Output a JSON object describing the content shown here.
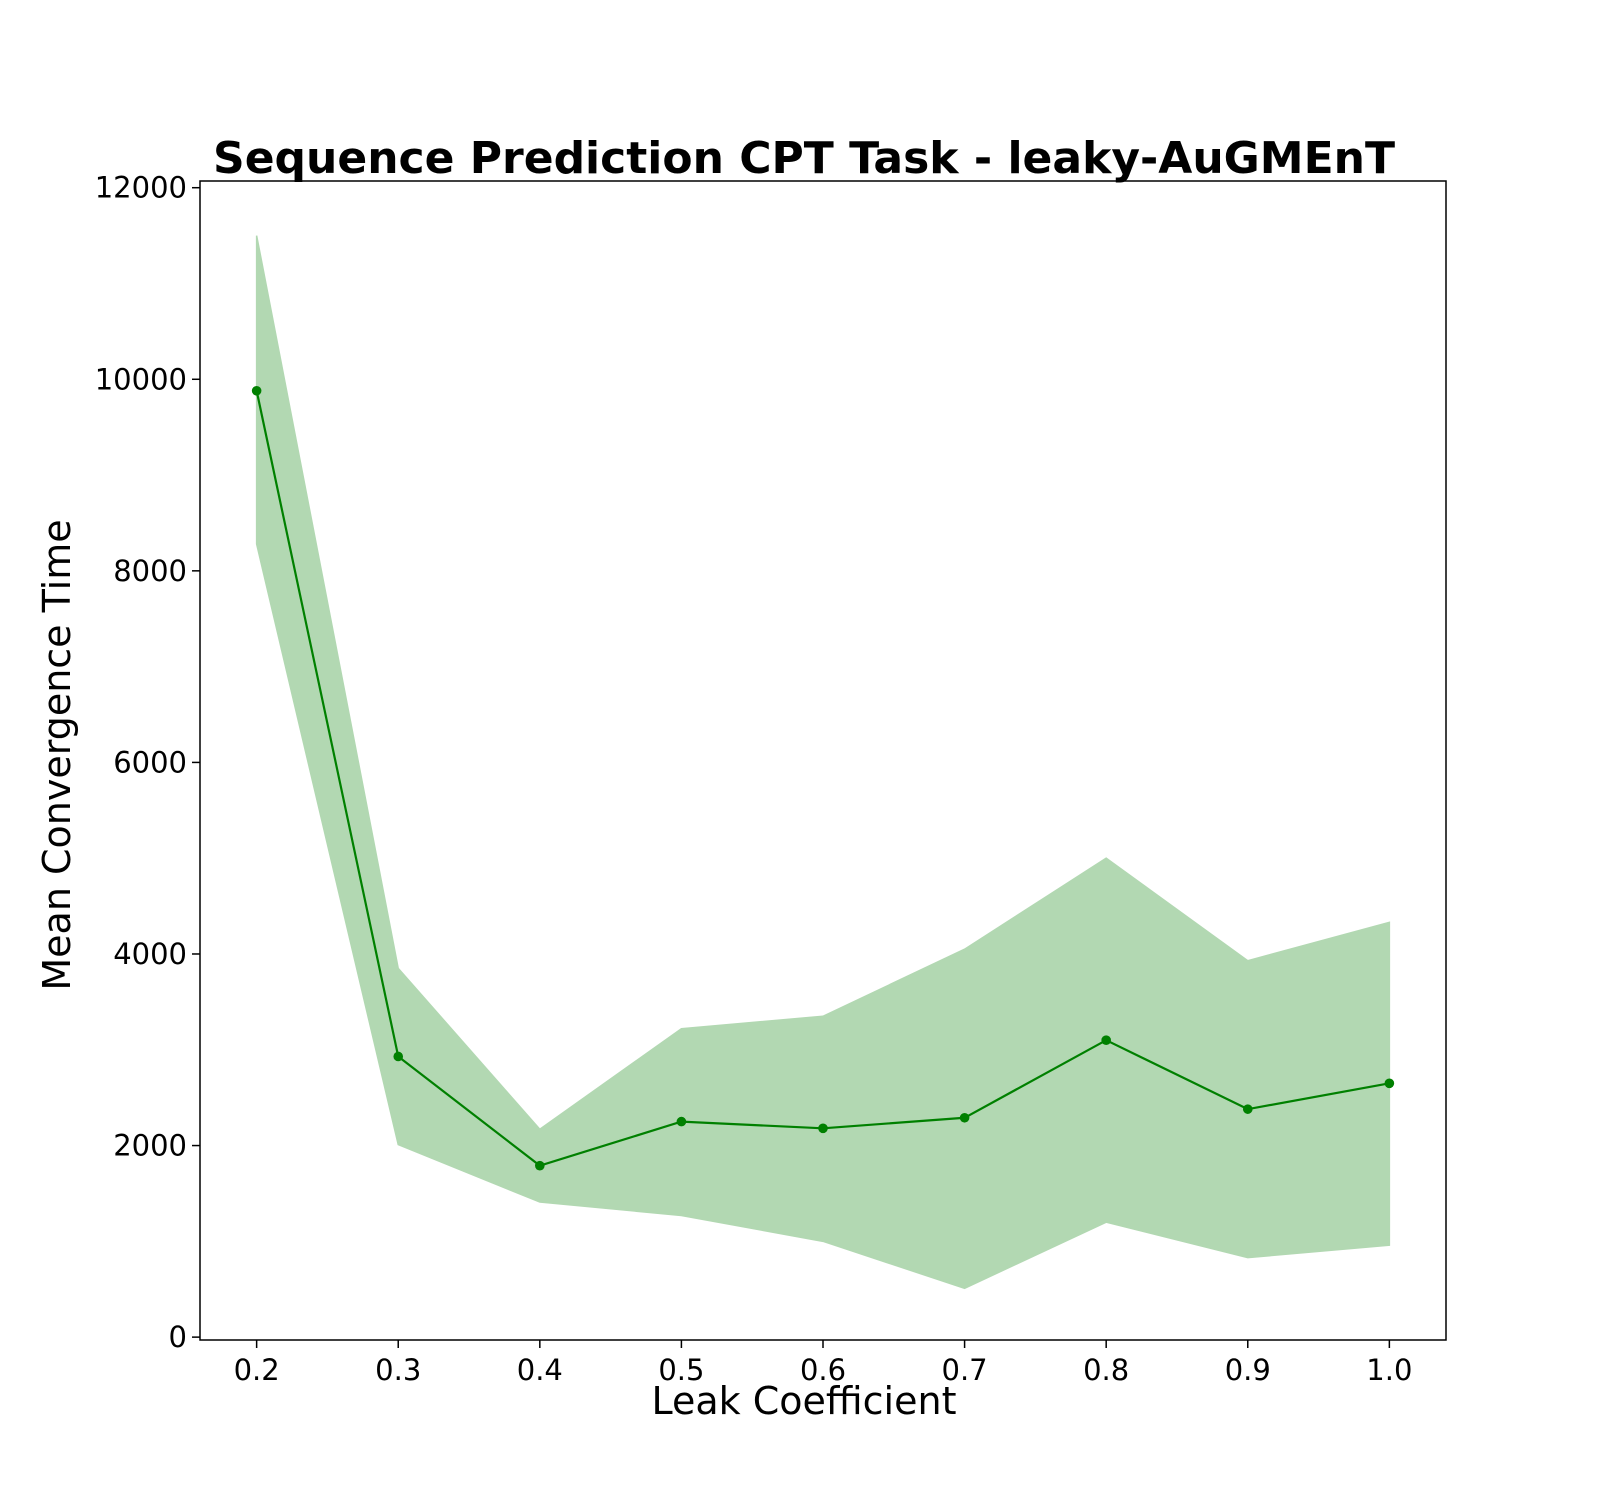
{
  "chart_data": {
    "type": "line",
    "title": "Sequence Prediction CPT Task - leaky-AuGMEnT",
    "xlabel": "Leak Coefficient",
    "ylabel": "Mean Convergence Time",
    "x": [
      0.2,
      0.3,
      0.4,
      0.5,
      0.6,
      0.7,
      0.8,
      0.9,
      1.0
    ],
    "x_tick_labels": [
      "0.2",
      "0.3",
      "0.4",
      "0.5",
      "0.6",
      "0.7",
      "0.8",
      "0.9",
      "1.0"
    ],
    "y_ticks": [
      0,
      2000,
      4000,
      6000,
      8000,
      10000,
      12000
    ],
    "y_tick_labels": [
      "0",
      "2000",
      "4000",
      "6000",
      "8000",
      "10000",
      "12000"
    ],
    "xlim": [
      0.16,
      1.04
    ],
    "ylim": [
      -30,
      12070
    ],
    "grid": false,
    "series": [
      {
        "values": [
          9880,
          2930,
          1790,
          2250,
          2180,
          2290,
          3100,
          2380,
          2650
        ],
        "upper": [
          11500,
          3850,
          2170,
          3220,
          3350,
          4050,
          5000,
          3930,
          4330
        ],
        "lower": [
          8280,
          2010,
          1410,
          1270,
          1000,
          510,
          1200,
          830,
          960
        ],
        "color": "#008000",
        "band_color": "#b2d8b2"
      }
    ]
  }
}
